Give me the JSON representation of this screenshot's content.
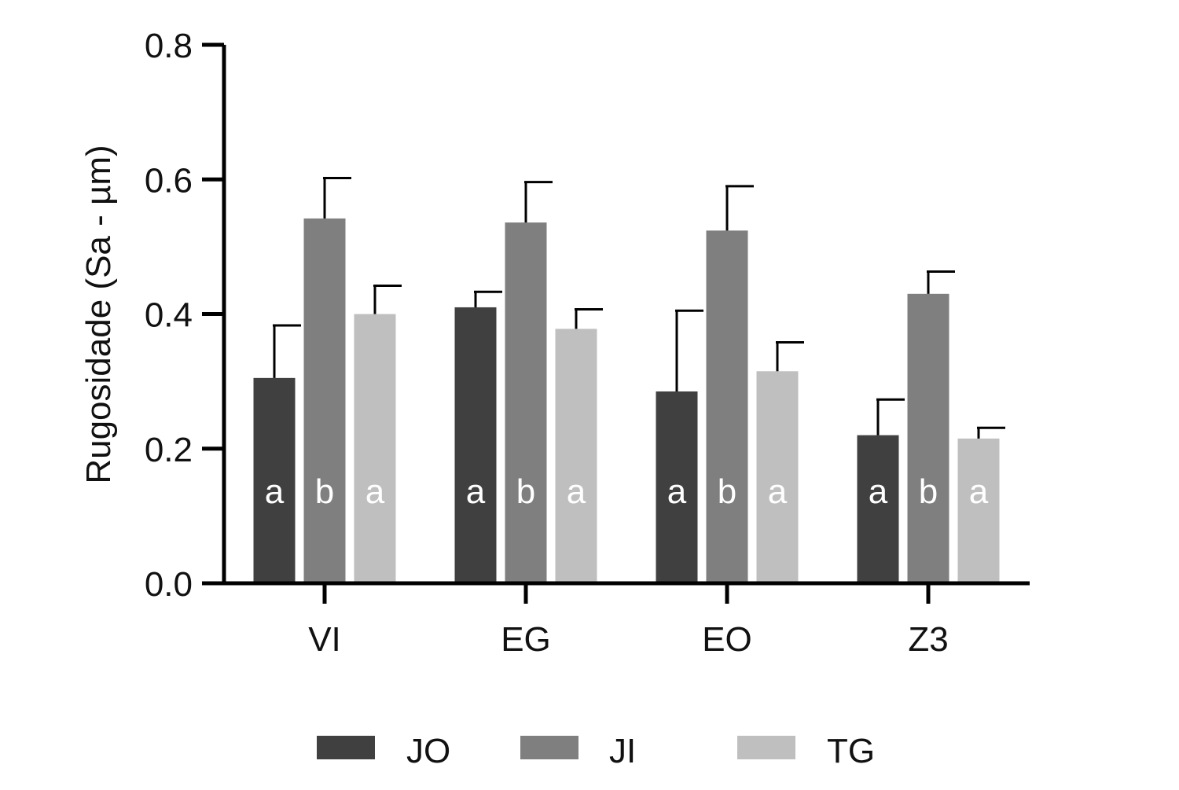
{
  "chart_data": {
    "type": "bar",
    "ylabel": "Rugosidade (Sa - µm)",
    "xlabel": "",
    "ylim": [
      0,
      0.8
    ],
    "yticks": [
      "0.0",
      "0.2",
      "0.4",
      "0.6",
      "0.8"
    ],
    "categories": [
      "VI",
      "EG",
      "EO",
      "Z3"
    ],
    "series": [
      {
        "name": "JO",
        "color": "#404040",
        "values": [
          0.305,
          0.41,
          0.285,
          0.22
        ],
        "error": [
          0.078,
          0.023,
          0.12,
          0.053
        ],
        "letters": [
          "a",
          "a",
          "a",
          "a"
        ]
      },
      {
        "name": "JI",
        "color": "#7f7f7f",
        "values": [
          0.542,
          0.536,
          0.524,
          0.43
        ],
        "error": [
          0.06,
          0.06,
          0.066,
          0.033
        ],
        "letters": [
          "b",
          "b",
          "b",
          "b"
        ]
      },
      {
        "name": "TG",
        "color": "#bfbfbf",
        "values": [
          0.4,
          0.378,
          0.315,
          0.215
        ],
        "error": [
          0.042,
          0.029,
          0.043,
          0.016
        ],
        "letters": [
          "a",
          "a",
          "a",
          "a"
        ]
      }
    ],
    "legend_position": "bottom",
    "grid": false
  }
}
